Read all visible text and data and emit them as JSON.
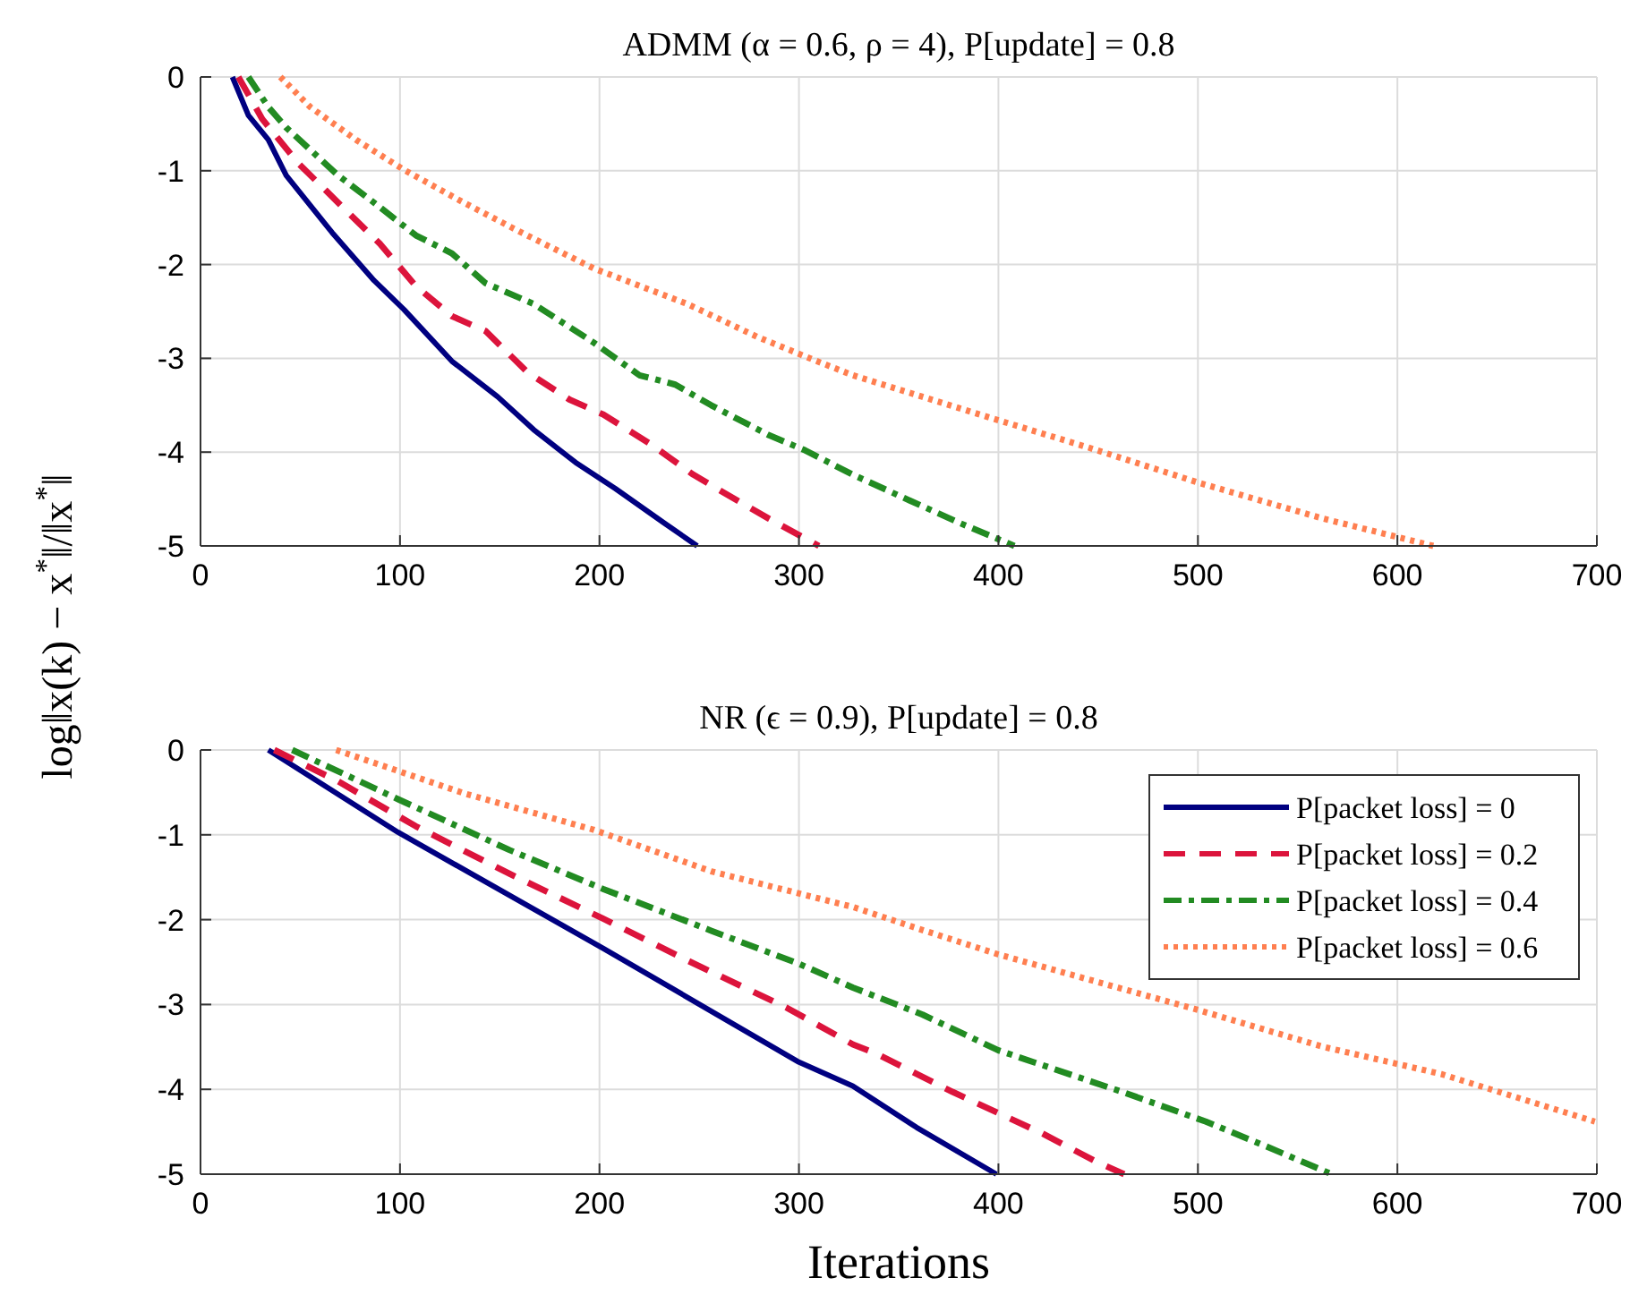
{
  "chart_data": [
    {
      "type": "line",
      "title": "ADMM (α = 0.6,  ρ = 4), P[update] = 0.8",
      "ylabel": "log‖x(k) − x$^{*}$‖/‖x$^{*}$‖",
      "xlim": [
        0,
        700
      ],
      "ylim": [
        -5,
        0
      ],
      "xticks": [
        0,
        100,
        200,
        300,
        400,
        500,
        600,
        700
      ],
      "yticks": [
        0,
        -1,
        -2,
        -3,
        -4,
        -5
      ],
      "grid": true,
      "legend": false,
      "series": [
        {
          "color": "#000080",
          "line_style": "solid",
          "x": [
            16,
            24,
            34,
            43,
            66,
            87,
            102,
            126,
            149,
            167,
            188,
            208,
            232,
            249
          ],
          "values": [
            0,
            -0.41,
            -0.67,
            -1.05,
            -1.66,
            -2.17,
            -2.48,
            -3.03,
            -3.41,
            -3.76,
            -4.11,
            -4.39,
            -4.75,
            -5
          ]
        },
        {
          "color": "#dc143c",
          "line_style": "dashed",
          "x": [
            19,
            31,
            49,
            69,
            90,
            108,
            126,
            143,
            164,
            185,
            202,
            226,
            247,
            267,
            285,
            310
          ],
          "values": [
            0,
            -0.45,
            -0.92,
            -1.34,
            -1.78,
            -2.23,
            -2.55,
            -2.71,
            -3.15,
            -3.44,
            -3.6,
            -3.92,
            -4.24,
            -4.49,
            -4.71,
            -5
          ]
        },
        {
          "color": "#228b22",
          "line_style": "dashdot",
          "x": [
            24,
            34,
            43,
            69,
            87,
            108,
            126,
            143,
            167,
            197,
            220,
            238,
            256,
            285,
            303,
            327,
            356,
            380,
            408
          ],
          "values": [
            0,
            -0.32,
            -0.54,
            -1.05,
            -1.34,
            -1.69,
            -1.88,
            -2.2,
            -2.42,
            -2.83,
            -3.18,
            -3.28,
            -3.5,
            -3.82,
            -3.98,
            -4.24,
            -4.52,
            -4.75,
            -5
          ]
        },
        {
          "color": "#ff7f50",
          "line_style": "dotted",
          "x": [
            40,
            55,
            78,
            102,
            132,
            161,
            197,
            244,
            279,
            309,
            327,
            362,
            400,
            445,
            501,
            563,
            618
          ],
          "values": [
            0,
            -0.32,
            -0.67,
            -0.99,
            -1.34,
            -1.66,
            -2.04,
            -2.42,
            -2.77,
            -3.03,
            -3.18,
            -3.41,
            -3.66,
            -3.95,
            -4.33,
            -4.71,
            -5
          ]
        }
      ]
    },
    {
      "type": "line",
      "title": "NR (ϵ = 0.9), P[update] = 0.8",
      "xlabel": "Iterations",
      "xlim": [
        0,
        700
      ],
      "ylim": [
        -5,
        0
      ],
      "xticks": [
        0,
        100,
        200,
        300,
        400,
        500,
        600,
        700
      ],
      "yticks": [
        0,
        -1,
        -2,
        -3,
        -4,
        -5
      ],
      "grid": true,
      "legend": "right",
      "series": [
        {
          "name": "P[packet loss] = 0",
          "color": "#000080",
          "line_style": "solid",
          "x": [
            34,
            99,
            202,
            300,
            327,
            359,
            399
          ],
          "values": [
            0,
            -0.97,
            -2.34,
            -3.68,
            -3.96,
            -4.45,
            -5
          ]
        },
        {
          "name": "P[packet loss] = 0.2",
          "color": "#dc143c",
          "line_style": "dashed",
          "x": [
            37,
            69,
            108,
            155,
            202,
            244,
            294,
            327,
            338,
            377,
            422,
            448,
            463
          ],
          "values": [
            0,
            -0.37,
            -0.9,
            -1.46,
            -1.99,
            -2.48,
            -3.04,
            -3.47,
            -3.57,
            -4.03,
            -4.52,
            -4.84,
            -5
          ]
        },
        {
          "name": "P[packet loss] = 0.4",
          "color": "#228b22",
          "line_style": "dashdot",
          "x": [
            46,
            99,
            155,
            202,
            256,
            300,
            327,
            362,
            400,
            462,
            504,
            533,
            567
          ],
          "values": [
            0,
            -0.58,
            -1.18,
            -1.64,
            -2.13,
            -2.52,
            -2.8,
            -3.12,
            -3.54,
            -4.03,
            -4.38,
            -4.66,
            -5
          ]
        },
        {
          "name": "P[packet loss] = 0.6",
          "color": "#ff7f50",
          "line_style": "dotted",
          "x": [
            68,
            132,
            197,
            256,
            315,
            327,
            359,
            400,
            498,
            563,
            622,
            699
          ],
          "values": [
            0,
            -0.51,
            -0.94,
            -1.43,
            -1.78,
            -1.85,
            -2.1,
            -2.41,
            -3.05,
            -3.5,
            -3.82,
            -4.38
          ]
        }
      ]
    }
  ]
}
